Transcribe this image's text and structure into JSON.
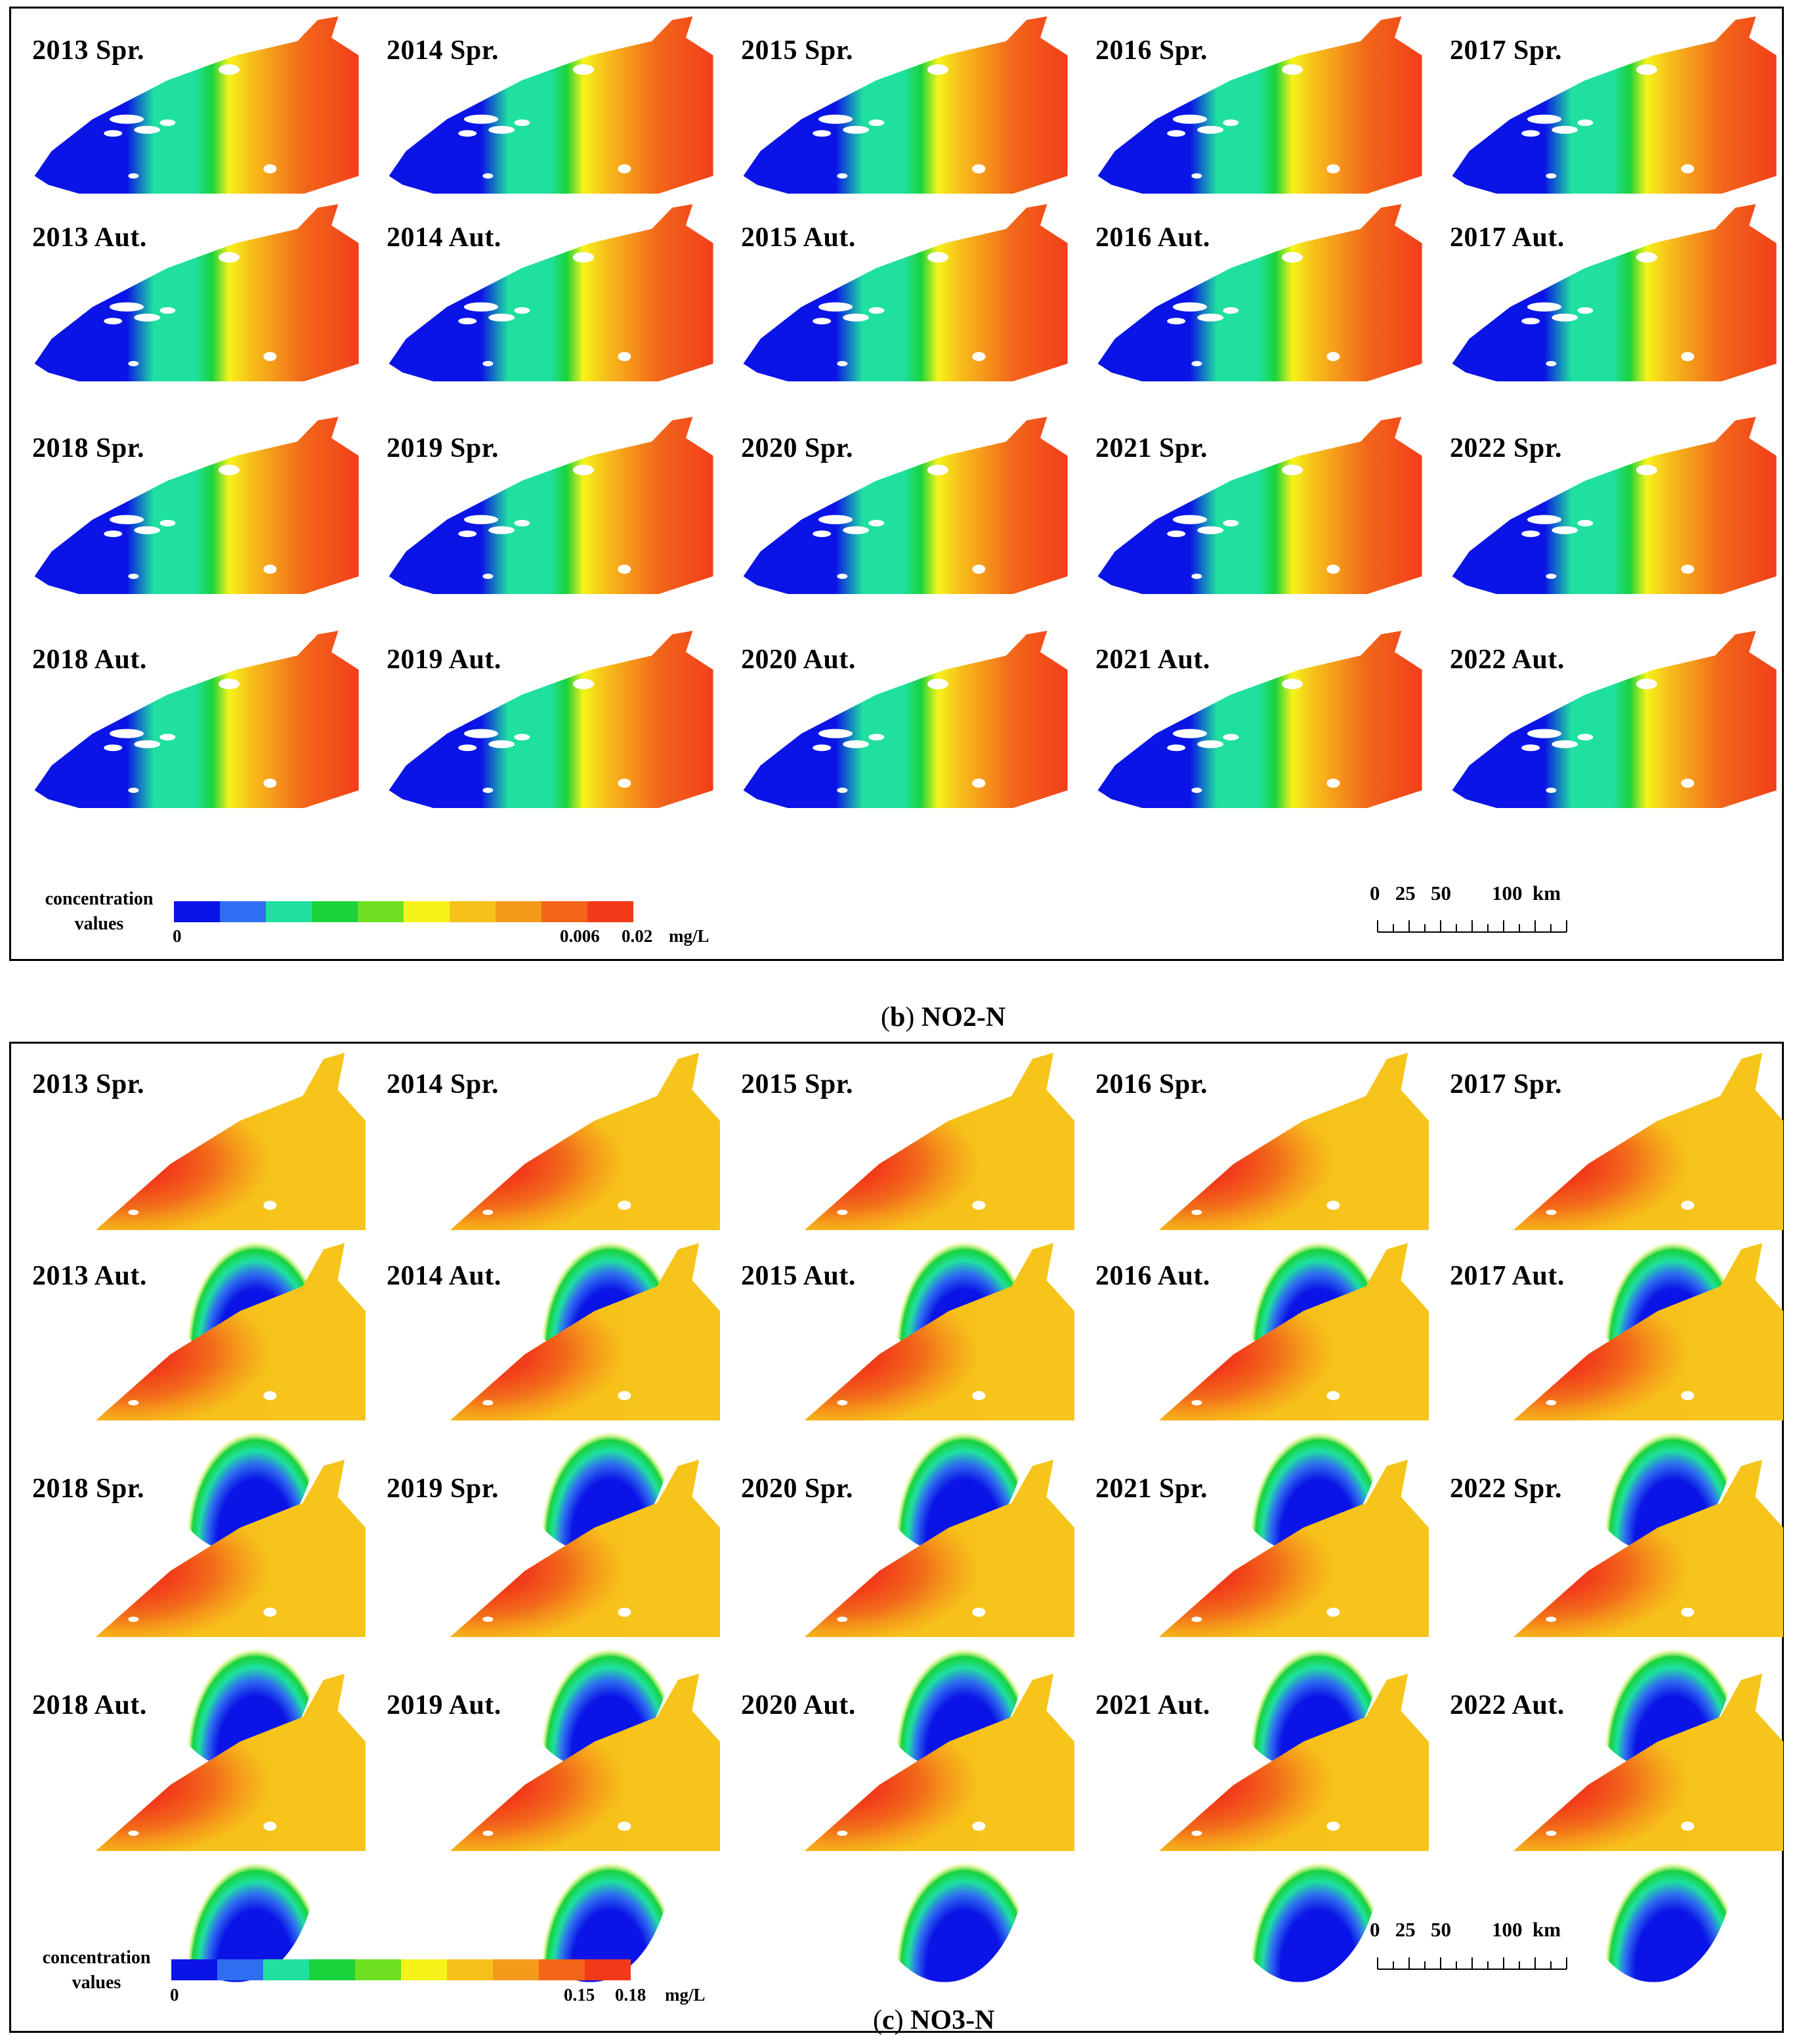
{
  "panels": [
    {
      "id": "b",
      "variable": "NO2-N",
      "caption": {
        "letter": "b",
        "name": "NO2-N"
      },
      "maps": [
        {
          "label": "2013 Spr."
        },
        {
          "label": "2014 Spr."
        },
        {
          "label": "2015 Spr."
        },
        {
          "label": "2016 Spr."
        },
        {
          "label": "2017 Spr."
        },
        {
          "label": "2013 Aut."
        },
        {
          "label": "2014 Aut."
        },
        {
          "label": "2015 Aut."
        },
        {
          "label": "2016 Aut."
        },
        {
          "label": "2017 Aut."
        },
        {
          "label": "2018 Spr."
        },
        {
          "label": "2019 Spr."
        },
        {
          "label": "2020 Spr."
        },
        {
          "label": "2021 Spr."
        },
        {
          "label": "2022 Spr."
        },
        {
          "label": "2018 Aut."
        },
        {
          "label": "2019 Aut."
        },
        {
          "label": "2020 Aut."
        },
        {
          "label": "2021 Aut."
        },
        {
          "label": "2022 Aut."
        }
      ],
      "legend": {
        "title_line1": "concentration",
        "title_line2": "values",
        "min_label": "0",
        "high_label": "0.006",
        "max_label": "0.02",
        "unit": "mg/L"
      },
      "scale_bar": {
        "labels": "0   25   50        100  km"
      }
    },
    {
      "id": "c",
      "variable": "NO3-N",
      "caption": {
        "letter": "c",
        "name": "NO3-N"
      },
      "maps": [
        {
          "label": "2013 Spr."
        },
        {
          "label": "2014 Spr."
        },
        {
          "label": "2015 Spr."
        },
        {
          "label": "2016 Spr."
        },
        {
          "label": "2017 Spr."
        },
        {
          "label": "2013 Aut."
        },
        {
          "label": "2014 Aut."
        },
        {
          "label": "2015 Aut."
        },
        {
          "label": "2016 Aut."
        },
        {
          "label": "2017 Aut."
        },
        {
          "label": "2018 Spr."
        },
        {
          "label": "2019 Spr."
        },
        {
          "label": "2020 Spr."
        },
        {
          "label": "2021 Spr."
        },
        {
          "label": "2022 Spr."
        },
        {
          "label": "2018 Aut."
        },
        {
          "label": "2019 Aut."
        },
        {
          "label": "2020 Aut."
        },
        {
          "label": "2021 Aut."
        },
        {
          "label": "2022 Aut."
        }
      ],
      "legend": {
        "title_line1": "concentration",
        "title_line2": "values",
        "min_label": "0",
        "high_label": "0.15",
        "max_label": "0.18",
        "unit": "mg/L"
      },
      "scale_bar": {
        "labels": "0   25   50        100  km"
      }
    }
  ],
  "colors": {
    "palette": [
      "#0a14e6",
      "#2e6ef0",
      "#1fe0a0",
      "#19d23c",
      "#6fe020",
      "#f6f31a",
      "#f6c21a",
      "#f59a1a",
      "#f2661a",
      "#f23a1a",
      "#e80f12"
    ]
  }
}
